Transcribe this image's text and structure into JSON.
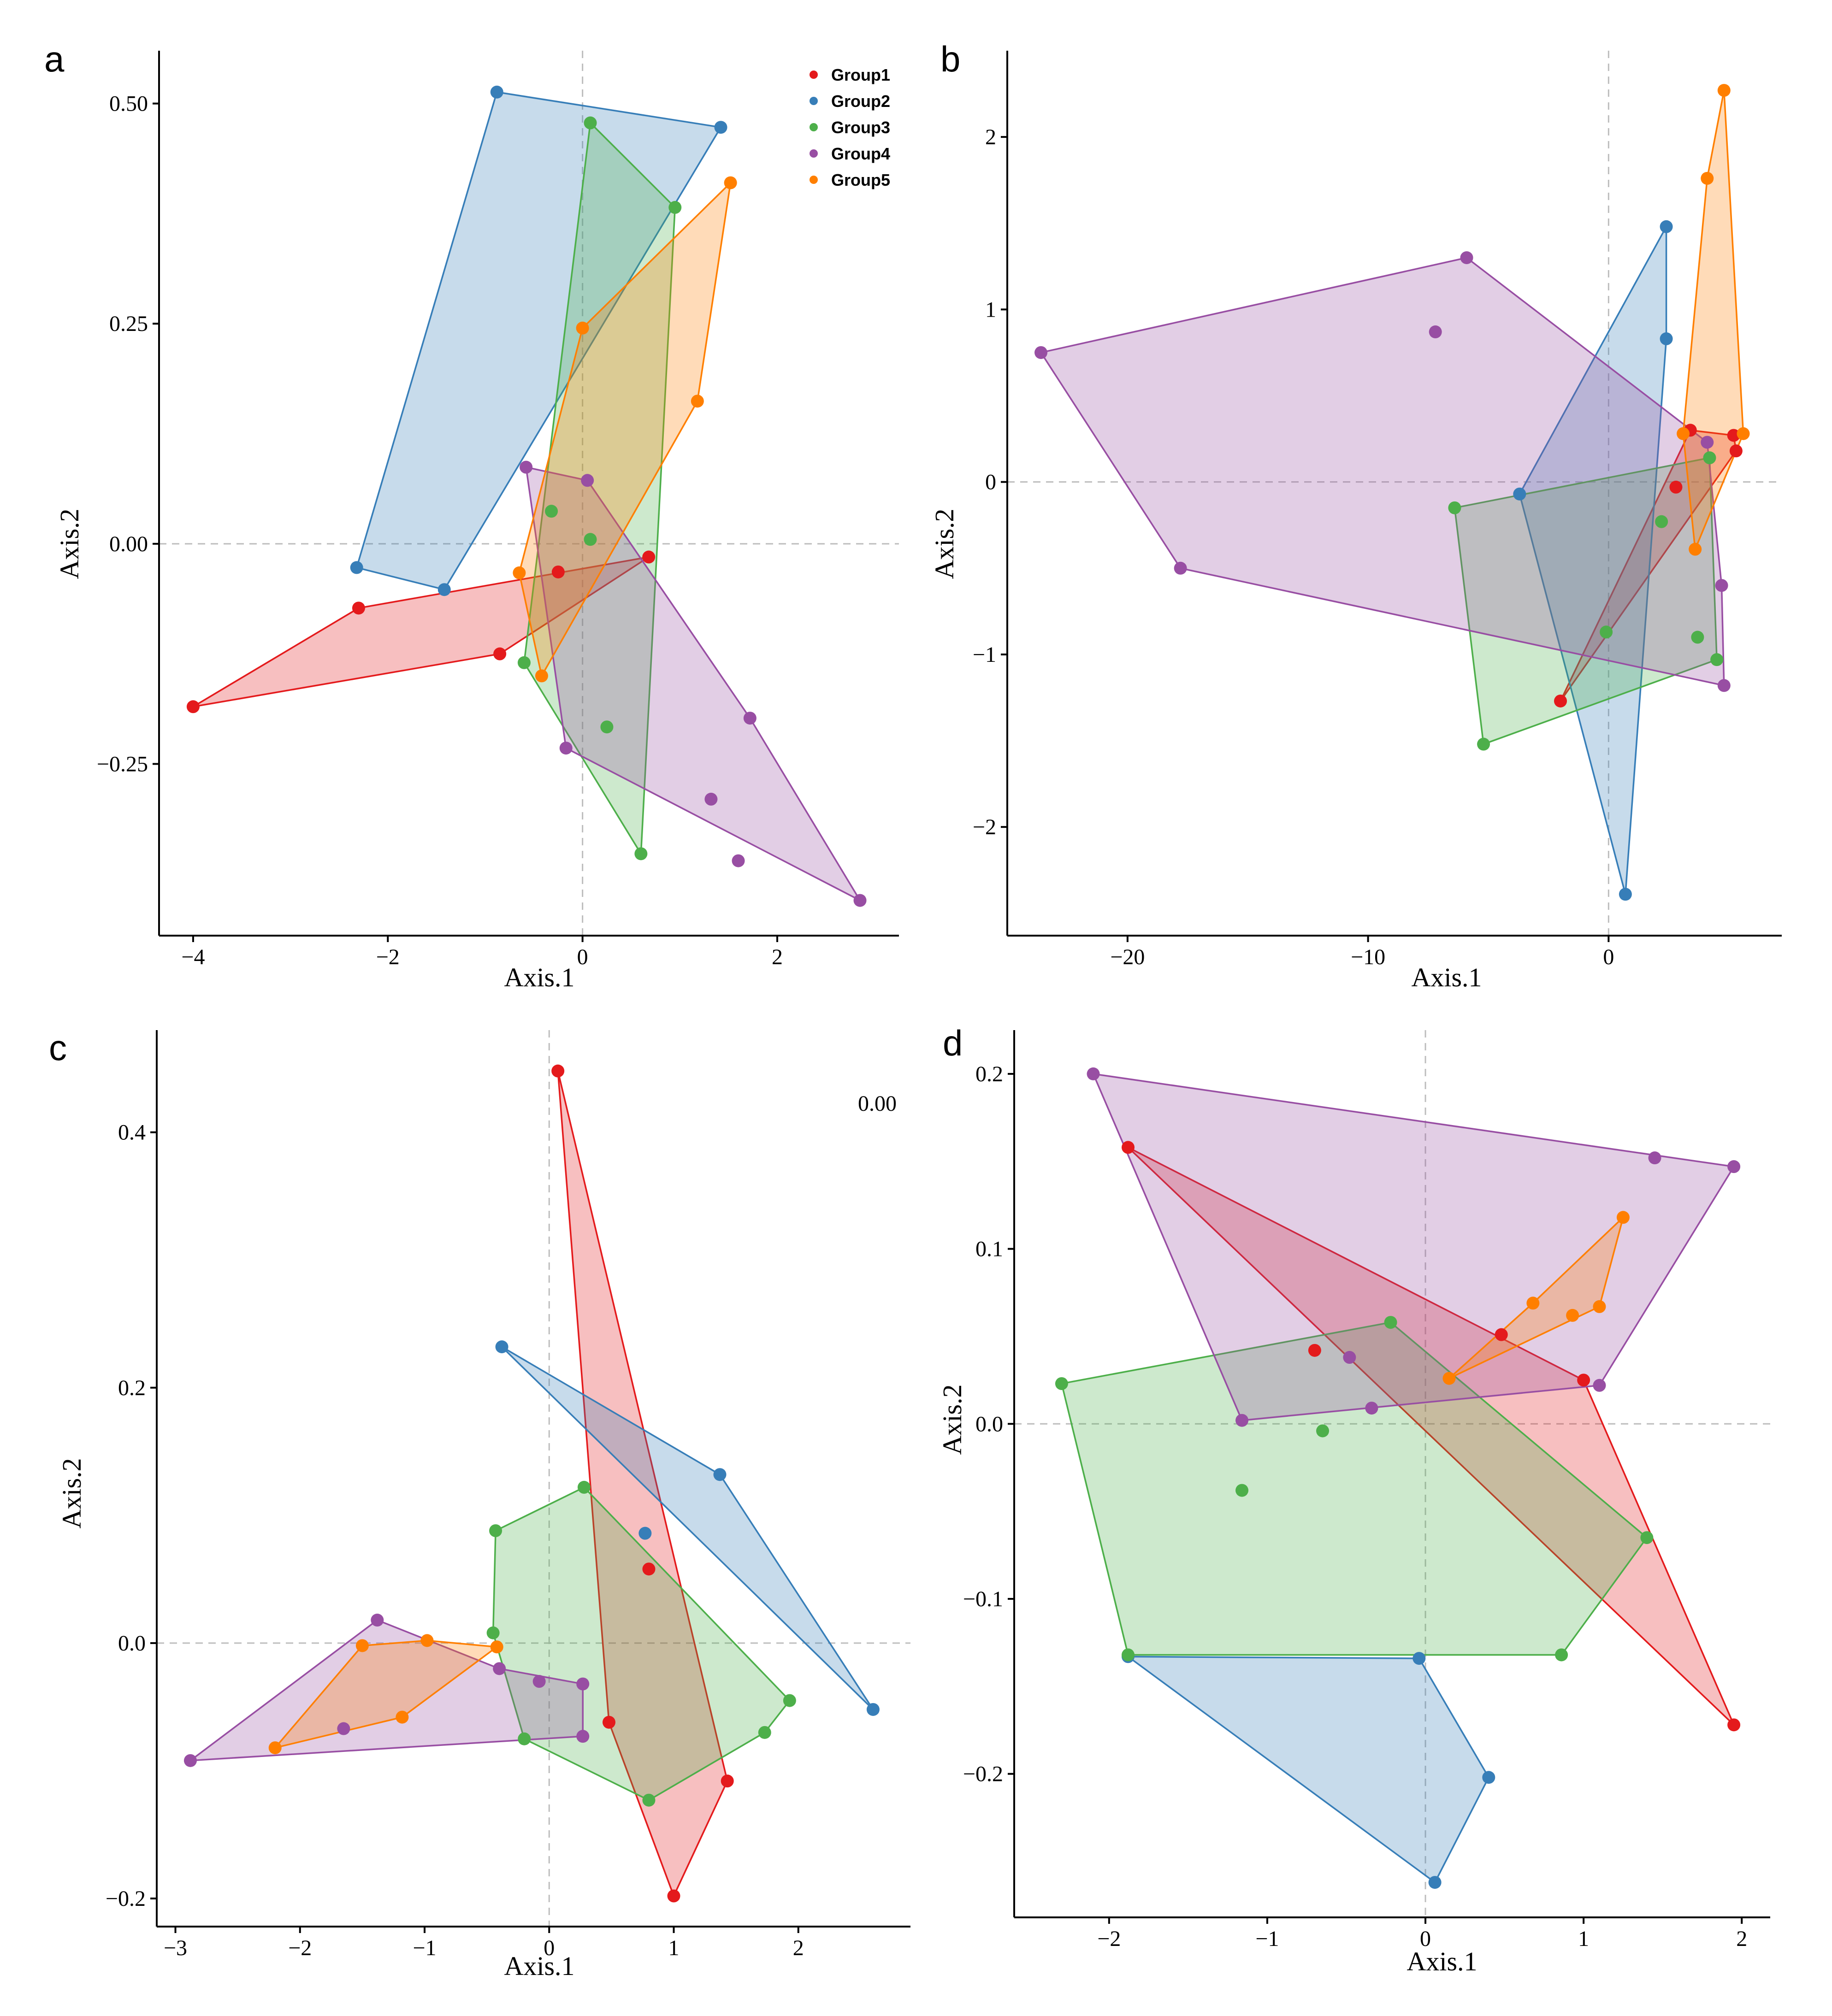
{
  "colors": {
    "Group1": "#e41a1c",
    "Group2": "#377eb8",
    "Group3": "#4daf4a",
    "Group4": "#984ea3",
    "Group5": "#ff7f00"
  },
  "chart_data": [
    {
      "id": "a",
      "type": "scatter",
      "panel_label": "a",
      "xlabel": "Axis.1",
      "ylabel": "Axis.2",
      "xlim": [
        -4.35,
        3.25
      ],
      "ylim": [
        -0.445,
        0.56
      ],
      "xticks": [
        -4,
        -2,
        0,
        2
      ],
      "xtick_labels": [
        "−4",
        "−2",
        "0",
        "2"
      ],
      "yticks": [
        -0.25,
        0,
        0.25,
        0.5
      ],
      "ytick_labels": [
        "−0.25",
        "0.00",
        "0.25",
        "0.50"
      ],
      "legend": {
        "position": "top-right",
        "entries": [
          "Group1",
          "Group2",
          "Group3",
          "Group4",
          "Group5"
        ]
      },
      "series": [
        {
          "name": "Group1",
          "points": [
            [
              -4.0,
              -0.185
            ],
            [
              -2.3,
              -0.073
            ],
            [
              -0.85,
              -0.125
            ],
            [
              -0.25,
              -0.032
            ],
            [
              0.68,
              -0.015
            ]
          ],
          "hull": [
            0,
            1,
            4,
            2
          ]
        },
        {
          "name": "Group2",
          "points": [
            [
              -0.88,
              0.513
            ],
            [
              1.42,
              0.473
            ],
            [
              -2.32,
              -0.027
            ],
            [
              -1.42,
              -0.052
            ]
          ],
          "hull": [
            0,
            1,
            3,
            2
          ]
        },
        {
          "name": "Group3",
          "points": [
            [
              0.08,
              0.478
            ],
            [
              0.95,
              0.382
            ],
            [
              -0.32,
              0.037
            ],
            [
              0.08,
              0.005
            ],
            [
              -0.6,
              -0.135
            ],
            [
              0.25,
              -0.208
            ],
            [
              0.6,
              -0.352
            ]
          ],
          "hull": [
            0,
            1,
            6,
            4
          ]
        },
        {
          "name": "Group4",
          "points": [
            [
              -0.58,
              0.087
            ],
            [
              0.05,
              0.072
            ],
            [
              -0.17,
              -0.232
            ],
            [
              1.72,
              -0.198
            ],
            [
              1.32,
              -0.29
            ],
            [
              1.6,
              -0.36
            ],
            [
              2.85,
              -0.405
            ]
          ],
          "hull": [
            0,
            1,
            3,
            6,
            2
          ]
        },
        {
          "name": "Group5",
          "points": [
            [
              1.52,
              0.41
            ],
            [
              0.0,
              0.245
            ],
            [
              1.18,
              0.162
            ],
            [
              -0.65,
              -0.033
            ],
            [
              -0.42,
              -0.15
            ]
          ],
          "hull": [
            0,
            2,
            4,
            3,
            1
          ]
        }
      ]
    },
    {
      "id": "b",
      "type": "scatter",
      "panel_label": "b",
      "xlabel": "Axis.1",
      "ylabel": "Axis.2",
      "xlim": [
        -25,
        7.2
      ],
      "ylim": [
        -2.63,
        2.5
      ],
      "xticks": [
        -20,
        -10,
        0
      ],
      "xtick_labels": [
        "−20",
        "−10",
        "0"
      ],
      "yticks": [
        -2,
        -1,
        0,
        1,
        2
      ],
      "ytick_labels": [
        "−2",
        "−1",
        "0",
        "1",
        "2"
      ],
      "series": [
        {
          "name": "Group1",
          "points": [
            [
              3.4,
              0.3
            ],
            [
              5.2,
              0.27
            ],
            [
              5.3,
              0.18
            ],
            [
              2.8,
              -0.03
            ],
            [
              -2.0,
              -1.27
            ]
          ],
          "hull": [
            0,
            1,
            2,
            4
          ]
        },
        {
          "name": "Group2",
          "points": [
            [
              2.4,
              1.48
            ],
            [
              2.4,
              0.83
            ],
            [
              -3.7,
              -0.07
            ],
            [
              0.7,
              -2.39
            ]
          ],
          "hull": [
            0,
            1,
            3,
            2
          ]
        },
        {
          "name": "Group3",
          "points": [
            [
              4.2,
              0.14
            ],
            [
              -6.4,
              -0.15
            ],
            [
              2.2,
              -0.23
            ],
            [
              -0.1,
              -0.87
            ],
            [
              3.7,
              -0.9
            ],
            [
              4.5,
              -1.03
            ],
            [
              -5.2,
              -1.52
            ]
          ],
          "hull": [
            0,
            5,
            6,
            1
          ]
        },
        {
          "name": "Group4",
          "points": [
            [
              -5.9,
              1.3
            ],
            [
              -7.2,
              0.87
            ],
            [
              -23.6,
              0.75
            ],
            [
              4.1,
              0.23
            ],
            [
              -17.8,
              -0.5
            ],
            [
              4.7,
              -0.6
            ],
            [
              4.8,
              -1.18
            ]
          ],
          "hull": [
            0,
            3,
            5,
            6,
            4,
            2
          ]
        },
        {
          "name": "Group5",
          "points": [
            [
              4.8,
              2.27
            ],
            [
              4.1,
              1.76
            ],
            [
              3.1,
              0.28
            ],
            [
              5.6,
              0.28
            ],
            [
              3.6,
              -0.39
            ]
          ],
          "hull": [
            0,
            3,
            4,
            2,
            1
          ]
        }
      ]
    },
    {
      "id": "c",
      "type": "scatter",
      "panel_label": "c",
      "xlabel": "Axis.1",
      "ylabel": "Axis.2",
      "annotation": "0.00",
      "xlim": [
        -3.15,
        2.9
      ],
      "ylim": [
        -0.222,
        0.48
      ],
      "xticks": [
        -3,
        -2,
        -1,
        0,
        1,
        2
      ],
      "xtick_labels": [
        "−3",
        "−2",
        "−1",
        "0",
        "1",
        "2"
      ],
      "yticks": [
        -0.2,
        0.0,
        0.2,
        0.4
      ],
      "ytick_labels": [
        "−0.2",
        "0.0",
        "0.2",
        "0.4"
      ],
      "series": [
        {
          "name": "Group1",
          "points": [
            [
              0.07,
              0.448
            ],
            [
              0.8,
              0.058
            ],
            [
              0.48,
              -0.062
            ],
            [
              1.43,
              -0.108
            ],
            [
              1.0,
              -0.198
            ]
          ],
          "hull": [
            0,
            3,
            4,
            2
          ]
        },
        {
          "name": "Group2",
          "points": [
            [
              -0.38,
              0.232
            ],
            [
              1.37,
              0.132
            ],
            [
              0.77,
              0.086
            ],
            [
              2.6,
              -0.052
            ]
          ],
          "hull": [
            0,
            1,
            3
          ]
        },
        {
          "name": "Group3",
          "points": [
            [
              0.28,
              0.122
            ],
            [
              -0.43,
              0.088
            ],
            [
              -0.45,
              0.008
            ],
            [
              1.93,
              -0.045
            ],
            [
              1.73,
              -0.07
            ],
            [
              -0.2,
              -0.075
            ],
            [
              0.8,
              -0.123
            ]
          ],
          "hull": [
            0,
            3,
            4,
            6,
            5,
            2,
            1
          ]
        },
        {
          "name": "Group4",
          "points": [
            [
              -1.38,
              0.018
            ],
            [
              -0.4,
              -0.02
            ],
            [
              -0.08,
              -0.03
            ],
            [
              0.27,
              -0.032
            ],
            [
              -1.65,
              -0.067
            ],
            [
              0.27,
              -0.073
            ],
            [
              -2.88,
              -0.092
            ]
          ],
          "hull": [
            0,
            1,
            3,
            5,
            6
          ]
        },
        {
          "name": "Group5",
          "points": [
            [
              -1.5,
              -0.002
            ],
            [
              -0.98,
              0.002
            ],
            [
              -0.42,
              -0.003
            ],
            [
              -1.18,
              -0.058
            ],
            [
              -2.2,
              -0.082
            ]
          ],
          "hull": [
            0,
            1,
            2,
            3,
            4
          ]
        }
      ]
    },
    {
      "id": "d",
      "type": "scatter",
      "panel_label": "d",
      "xlabel": "Axis.1",
      "ylabel": "Axis.2",
      "xlim": [
        -2.6,
        2.18
      ],
      "ylim": [
        -0.282,
        0.225
      ],
      "xticks": [
        -2,
        -1,
        0,
        1,
        2
      ],
      "xtick_labels": [
        "−2",
        "−1",
        "0",
        "1",
        "2"
      ],
      "yticks": [
        -0.2,
        -0.1,
        0.0,
        0.1,
        0.2
      ],
      "ytick_labels": [
        "−0.2",
        "−0.1",
        "0.0",
        "0.1",
        "0.2"
      ],
      "series": [
        {
          "name": "Group1",
          "points": [
            [
              -1.88,
              0.158
            ],
            [
              -0.7,
              0.042
            ],
            [
              0.48,
              0.051
            ],
            [
              1.0,
              0.025
            ],
            [
              1.95,
              -0.172
            ]
          ],
          "hull": [
            0,
            3,
            4
          ]
        },
        {
          "name": "Group2",
          "points": [
            [
              -1.88,
              -0.133
            ],
            [
              -0.04,
              -0.134
            ],
            [
              0.4,
              -0.202
            ],
            [
              0.06,
              -0.262
            ]
          ],
          "hull": [
            0,
            1,
            2,
            3
          ]
        },
        {
          "name": "Group3",
          "points": [
            [
              -0.22,
              0.058
            ],
            [
              -2.3,
              0.023
            ],
            [
              -0.65,
              -0.004
            ],
            [
              -1.16,
              -0.038
            ],
            [
              1.4,
              -0.065
            ],
            [
              -1.88,
              -0.132
            ],
            [
              0.86,
              -0.132
            ]
          ],
          "hull": [
            0,
            4,
            6,
            5,
            1
          ]
        },
        {
          "name": "Group4",
          "points": [
            [
              -2.1,
              0.2
            ],
            [
              1.45,
              0.152
            ],
            [
              1.95,
              0.147
            ],
            [
              -0.48,
              0.038
            ],
            [
              -0.34,
              0.009
            ],
            [
              1.1,
              0.022
            ],
            [
              -1.16,
              0.002
            ]
          ],
          "hull": [
            0,
            2,
            5,
            6
          ]
        },
        {
          "name": "Group5",
          "points": [
            [
              1.25,
              0.118
            ],
            [
              0.68,
              0.069
            ],
            [
              0.93,
              0.062
            ],
            [
              1.1,
              0.067
            ],
            [
              0.15,
              0.026
            ]
          ],
          "hull": [
            0,
            3,
            4,
            1
          ]
        }
      ]
    }
  ]
}
